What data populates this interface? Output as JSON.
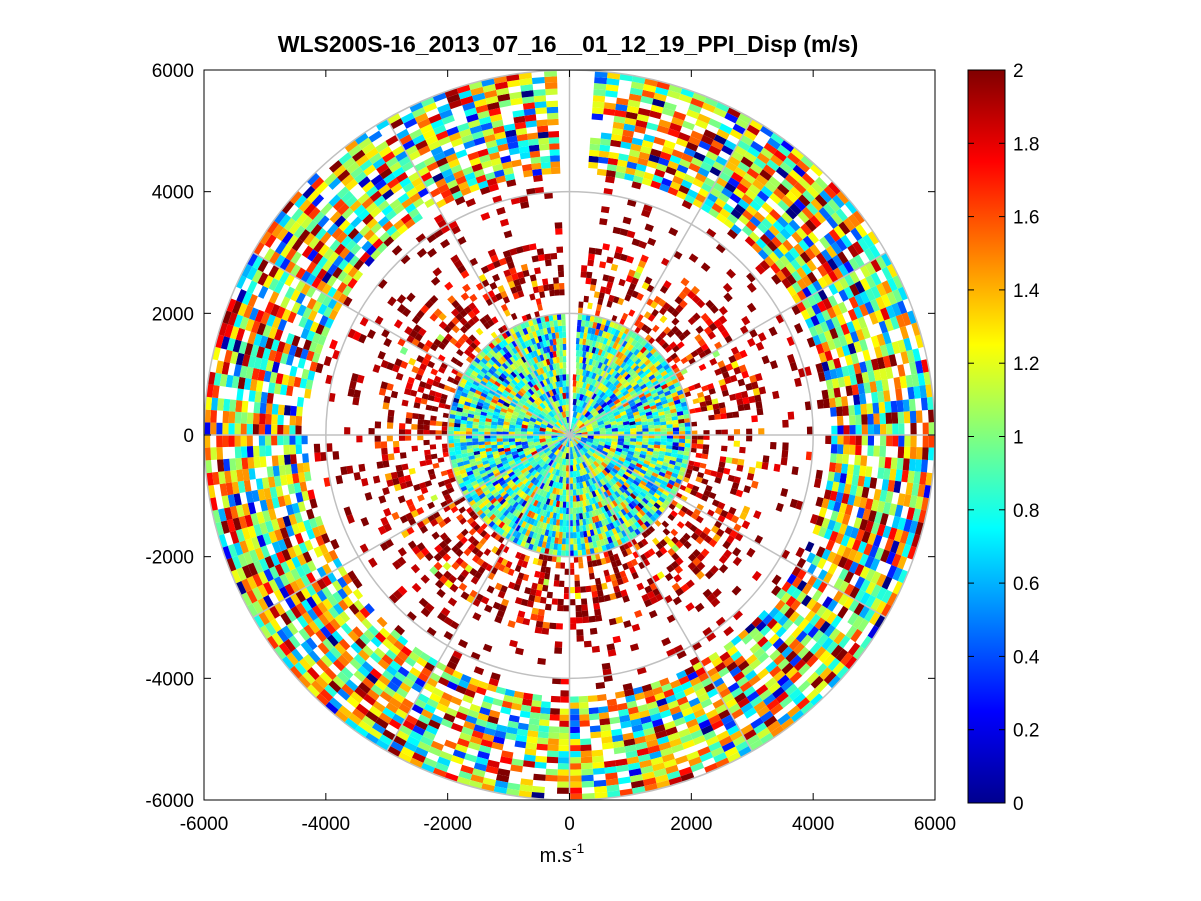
{
  "chart_data": {
    "type": "heatmap",
    "subtype": "polar-ppi",
    "title": "WLS200S-16_2013_07_16__01_12_19_PPI_Disp (m/s)",
    "xlabel": "m.s",
    "xlabel_superscript": "-1",
    "ylabel": "",
    "xlim": [
      -6000,
      6000
    ],
    "ylim": [
      -6000,
      6000
    ],
    "xticks": [
      "-6000",
      "-4000",
      "-2000",
      "0",
      "2000",
      "4000",
      "6000"
    ],
    "yticks": [
      "6000",
      "4000",
      "2000",
      "0",
      "-2000",
      "-4000",
      "-6000"
    ],
    "range_rings": [
      2000,
      4000,
      6000
    ],
    "spoke_angles_deg": [
      0,
      30,
      60,
      90,
      120,
      150,
      180,
      210,
      240,
      270,
      300,
      330
    ],
    "colorbar": {
      "colormap": "jet",
      "range": [
        0,
        2
      ],
      "ticks": [
        "2",
        "1.8",
        "1.6",
        "1.4",
        "1.2",
        "1",
        "0.8",
        "0.6",
        "0.4",
        "0.2",
        "0"
      ]
    },
    "gates": {
      "max_range": 6000,
      "ring_width": 100,
      "az_step_deg": 4,
      "ranges": [
        {
          "rmin": 0,
          "rmax": 2000,
          "fill": 1.0,
          "mean": 0.9,
          "sd": 0.35
        },
        {
          "rmin": 2000,
          "rmax": 3200,
          "fill": 0.45,
          "mean": 1.85,
          "sd": 0.3
        },
        {
          "rmin": 3200,
          "rmax": 4300,
          "fill": 0.15,
          "mean": 1.95,
          "sd": 0.1
        },
        {
          "rmin": 4300,
          "rmax": 6000,
          "fill": 0.85,
          "mean": 1.15,
          "sd": 0.5
        }
      ],
      "gap_sector_deg": [
        -3,
        3
      ],
      "sample_count": 5600
    }
  }
}
